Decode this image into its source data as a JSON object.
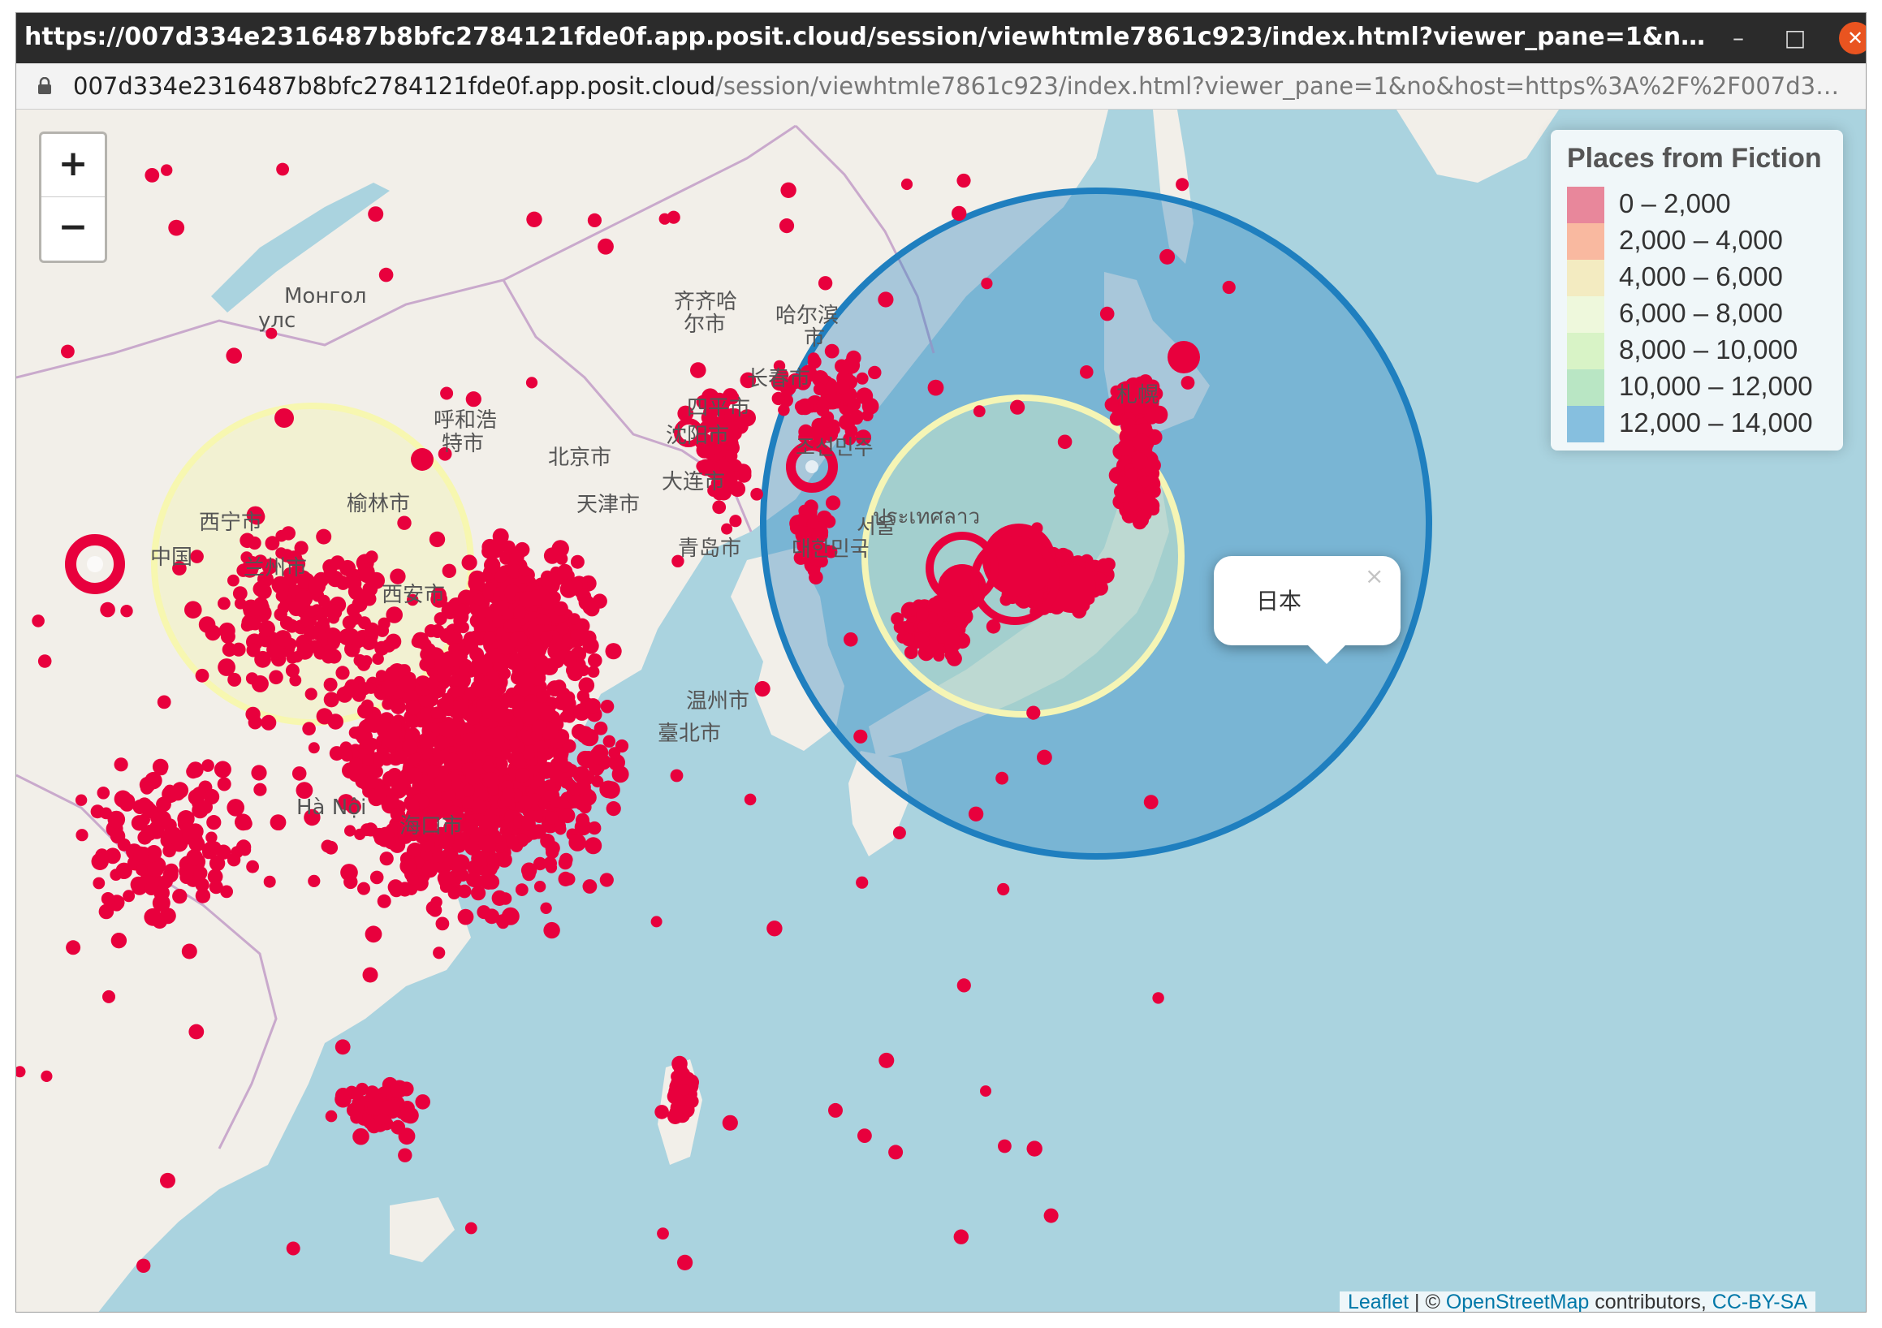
{
  "window": {
    "title": "https://007d334e2316487b8bfc2784121fde0f.app.posit.cloud/session/viewhtmle7861c923/index.html?viewer_pane=1&no&host=https%3A%2F%2...",
    "minimize_icon": "minimize-icon",
    "maximize_icon": "maximize-icon",
    "close_icon": "close-icon"
  },
  "urlbar": {
    "host": "007d334e2316487b8bfc2784121fde0f.app.posit.cloud",
    "path": "/session/viewhtmle7861c923/index.html?viewer_pane=1&no&host=https%3A%2F%2F007d334e2316487b8bfc278..."
  },
  "zoom": {
    "in_label": "+",
    "out_label": "−"
  },
  "legend": {
    "title": "Places from Fiction",
    "items": [
      {
        "label": "0 – 2,000",
        "color": "#e8879b"
      },
      {
        "label": "2,000 – 4,000",
        "color": "#f9b9a0"
      },
      {
        "label": "4,000 – 6,000",
        "color": "#f3ebc1"
      },
      {
        "label": "6,000 – 8,000",
        "color": "#eef8dc"
      },
      {
        "label": "8,000 – 10,000",
        "color": "#d8f3c6"
      },
      {
        "label": "10,000 – 12,000",
        "color": "#b9e6c4"
      },
      {
        "label": "12,000 – 14,000",
        "color": "#86bfdf"
      }
    ]
  },
  "popup": {
    "text": "日本",
    "close": "×"
  },
  "attribution": {
    "leaflet": "Leaflet",
    "sep": " | © ",
    "osm": "OpenStreetMap",
    "contributors": " contributors, ",
    "license": "CC-BY-SA"
  },
  "map_labels": [
    "Монгол",
    "улс",
    "齐齐哈",
    "尔市",
    "哈尔滨",
    "市",
    "长春市",
    "四平市",
    "呼和浩",
    "特市",
    "沈阳市",
    "北京市",
    "大连市",
    "天津市",
    "榆林市",
    "西宁市",
    "中国",
    "兰州市",
    "西安市",
    "青岛市",
    "서울",
    "대한민국",
    "조선민주",
    "温州市",
    "臺北市",
    "海口市",
    "Hà Nội",
    "ประเทศลาว",
    "札幌"
  ],
  "colors": {
    "marker": "#e8003d",
    "water": "#aad3df",
    "land": "#f2efe9",
    "big_circle": "#1f7fbf"
  }
}
